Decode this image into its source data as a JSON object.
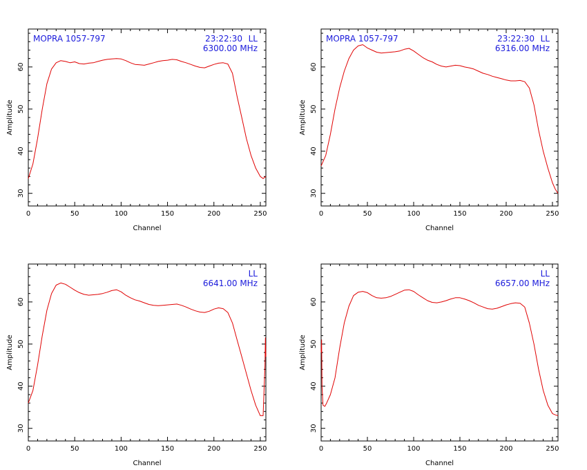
{
  "chart_data": [
    {
      "type": "line",
      "source": "MOPRA 1057-797",
      "time": "23:22:30",
      "polarization": "LL",
      "frequency": "6300.00 MHz",
      "xlabel": "Channel",
      "ylabel": "Amplitude",
      "xlim": [
        0,
        256
      ],
      "ylim": [
        27,
        69
      ],
      "xticks": [
        0,
        50,
        100,
        150,
        200,
        250
      ],
      "yticks": [
        30,
        40,
        50,
        60
      ],
      "line_color": "#e00000",
      "series": [
        {
          "x": [
            0,
            5,
            10,
            15,
            20,
            25,
            30,
            35,
            40,
            45,
            50,
            55,
            60,
            65,
            70,
            75,
            80,
            85,
            90,
            95,
            100,
            105,
            110,
            115,
            120,
            125,
            130,
            135,
            140,
            145,
            150,
            155,
            160,
            165,
            170,
            175,
            180,
            185,
            190,
            195,
            200,
            205,
            210,
            215,
            220,
            225,
            230,
            235,
            240,
            245,
            250,
            253,
            256
          ],
          "values": [
            33.5,
            37,
            43,
            50,
            56,
            59.5,
            61,
            61.5,
            61.3,
            61,
            61.2,
            60.8,
            60.7,
            60.9,
            61,
            61.3,
            61.6,
            61.8,
            61.9,
            62,
            61.9,
            61.5,
            61,
            60.6,
            60.5,
            60.4,
            60.7,
            61,
            61.3,
            61.5,
            61.6,
            61.8,
            61.7,
            61.3,
            61,
            60.6,
            60.2,
            59.9,
            59.8,
            60.2,
            60.6,
            60.9,
            61,
            60.7,
            58.5,
            53,
            48,
            43,
            39,
            36,
            34,
            33.5,
            34
          ]
        }
      ]
    },
    {
      "type": "line",
      "source": "MOPRA 1057-797",
      "time": "23:22:30",
      "polarization": "LL",
      "frequency": "6316.00 MHz",
      "xlabel": "Channel",
      "ylabel": "Amplitude",
      "xlim": [
        0,
        256
      ],
      "ylim": [
        27,
        69
      ],
      "xticks": [
        0,
        50,
        100,
        150,
        200,
        250
      ],
      "yticks": [
        30,
        40,
        50,
        60
      ],
      "line_color": "#e00000",
      "series": [
        {
          "x": [
            0,
            5,
            10,
            15,
            20,
            25,
            30,
            35,
            40,
            45,
            50,
            55,
            60,
            65,
            70,
            75,
            80,
            85,
            90,
            95,
            100,
            105,
            110,
            115,
            120,
            125,
            130,
            135,
            140,
            145,
            150,
            155,
            160,
            165,
            170,
            175,
            180,
            185,
            190,
            195,
            200,
            205,
            210,
            215,
            220,
            225,
            230,
            235,
            240,
            245,
            250,
            253,
            256
          ],
          "values": [
            36.5,
            39,
            44,
            50,
            55,
            59,
            62,
            64,
            65,
            65.3,
            64.5,
            64,
            63.5,
            63.3,
            63.4,
            63.5,
            63.6,
            63.8,
            64.2,
            64.4,
            63.8,
            63,
            62.2,
            61.6,
            61.2,
            60.6,
            60.2,
            60,
            60.2,
            60.4,
            60.3,
            60,
            59.8,
            59.5,
            59,
            58.5,
            58.2,
            57.8,
            57.5,
            57.2,
            56.9,
            56.7,
            56.7,
            56.8,
            56.5,
            55,
            51,
            45,
            40,
            36,
            32.5,
            31,
            30
          ]
        }
      ]
    },
    {
      "type": "line",
      "source": "",
      "time": "",
      "polarization": "LL",
      "frequency": "6641.00 MHz",
      "xlabel": "Channel",
      "ylabel": "Amplitude",
      "xlim": [
        0,
        256
      ],
      "ylim": [
        27,
        69
      ],
      "xticks": [
        0,
        50,
        100,
        150,
        200,
        250
      ],
      "yticks": [
        30,
        40,
        50,
        60
      ],
      "line_color": "#e00000",
      "series": [
        {
          "x": [
            0,
            5,
            10,
            15,
            20,
            25,
            30,
            35,
            40,
            45,
            50,
            55,
            60,
            65,
            70,
            75,
            80,
            85,
            90,
            95,
            100,
            105,
            110,
            115,
            120,
            125,
            130,
            135,
            140,
            145,
            150,
            155,
            160,
            165,
            170,
            175,
            180,
            185,
            190,
            195,
            200,
            205,
            210,
            215,
            220,
            225,
            230,
            235,
            240,
            245,
            250,
            253,
            255,
            255.5,
            256
          ],
          "values": [
            36,
            39,
            45,
            52,
            58,
            62,
            64,
            64.5,
            64.2,
            63.5,
            62.8,
            62.2,
            61.8,
            61.6,
            61.7,
            61.8,
            62,
            62.3,
            62.7,
            62.9,
            62.4,
            61.6,
            61,
            60.5,
            60.2,
            59.8,
            59.4,
            59.2,
            59.1,
            59.2,
            59.3,
            59.4,
            59.5,
            59.2,
            58.8,
            58.3,
            57.9,
            57.6,
            57.5,
            57.8,
            58.3,
            58.6,
            58.4,
            57.5,
            55,
            51,
            47,
            43,
            39,
            35.5,
            33,
            33,
            45,
            51.5,
            47
          ]
        }
      ]
    },
    {
      "type": "line",
      "source": "",
      "time": "",
      "polarization": "LL",
      "frequency": "6657.00 MHz",
      "xlabel": "Channel",
      "ylabel": "Amplitude",
      "xlim": [
        0,
        256
      ],
      "ylim": [
        27,
        69
      ],
      "xticks": [
        0,
        50,
        100,
        150,
        200,
        250
      ],
      "yticks": [
        30,
        40,
        50,
        60
      ],
      "line_color": "#e00000",
      "series": [
        {
          "x": [
            0,
            0.5,
            1,
            2,
            4,
            6,
            10,
            15,
            20,
            25,
            30,
            35,
            40,
            45,
            50,
            55,
            60,
            65,
            70,
            75,
            80,
            85,
            90,
            95,
            100,
            105,
            110,
            115,
            120,
            125,
            130,
            135,
            140,
            145,
            150,
            155,
            160,
            165,
            170,
            175,
            180,
            185,
            190,
            195,
            200,
            205,
            210,
            215,
            220,
            225,
            230,
            235,
            240,
            245,
            250,
            253,
            256
          ],
          "values": [
            48,
            51,
            40,
            35.5,
            35.2,
            36,
            38,
            42,
            49,
            55,
            59,
            61.5,
            62.3,
            62.5,
            62.2,
            61.5,
            61,
            60.9,
            61,
            61.3,
            61.8,
            62.3,
            62.8,
            62.9,
            62.5,
            61.7,
            61,
            60.3,
            59.9,
            59.8,
            60,
            60.3,
            60.7,
            61,
            61,
            60.7,
            60.3,
            59.8,
            59.2,
            58.8,
            58.4,
            58.3,
            58.5,
            58.9,
            59.3,
            59.6,
            59.8,
            59.7,
            58.8,
            55,
            50,
            44,
            39,
            35.5,
            33.5,
            33.2,
            33
          ]
        }
      ]
    }
  ]
}
